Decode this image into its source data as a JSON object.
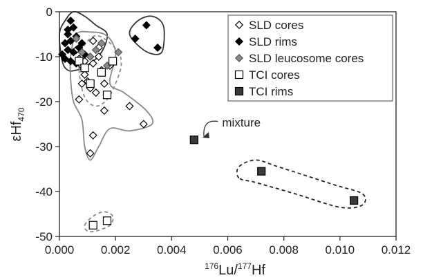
{
  "chart_data": {
    "type": "scatter",
    "title": "",
    "xlabel": {
      "sup": "176",
      "mid": "Lu/",
      "sup2": "177",
      "end": "Hf"
    },
    "ylabel": {
      "main": "εHf",
      "sub": "470"
    },
    "xlim": [
      0,
      0.012
    ],
    "ylim": [
      -50,
      0
    ],
    "xticks": [
      "0.000",
      "0.002",
      "0.004",
      "0.006",
      "0.008",
      "0.010",
      "0.012"
    ],
    "yticks": [
      "0",
      "-10",
      "-20",
      "-30",
      "-40",
      "-50"
    ],
    "legend_position": "top-right",
    "series": [
      {
        "name": "SLD cores",
        "marker": "diamond-open",
        "color": "#000000",
        "points": [
          [
            0.0006,
            -8.5
          ],
          [
            0.0008,
            -12
          ],
          [
            0.0009,
            -14
          ],
          [
            0.001,
            -15.5
          ],
          [
            0.0011,
            -17
          ],
          [
            0.0007,
            -19.5
          ],
          [
            0.0008,
            -16
          ],
          [
            0.0012,
            -11.5
          ],
          [
            0.0014,
            -10
          ],
          [
            0.0015,
            -13
          ],
          [
            0.0016,
            -16
          ],
          [
            0.0013,
            -18
          ],
          [
            0.0016,
            -22
          ],
          [
            0.0012,
            -27.5
          ],
          [
            0.0011,
            -31.5
          ],
          [
            0.0025,
            -21
          ],
          [
            0.003,
            -25
          ],
          [
            0.0009,
            -11
          ],
          [
            0.0012,
            -6.5
          ],
          [
            0.0014,
            -8
          ],
          [
            0.0018,
            -12
          ],
          [
            0.0007,
            -10.5
          ]
        ]
      },
      {
        "name": "SLD rims",
        "marker": "diamond-filled",
        "color": "#000000",
        "points": [
          [
            0.0004,
            -2
          ],
          [
            0.0005,
            -3.5
          ],
          [
            0.0003,
            -5
          ],
          [
            0.0004,
            -6.5
          ],
          [
            0.0006,
            -5.5
          ],
          [
            0.0002,
            -7
          ],
          [
            0.0003,
            -8.5
          ],
          [
            0.0005,
            -9
          ],
          [
            0.0007,
            -8
          ],
          [
            0.0009,
            -9.5
          ],
          [
            0.0002,
            -10.5
          ],
          [
            0.0004,
            -11
          ],
          [
            0.0001,
            -9.5
          ],
          [
            0.0006,
            -11.5
          ],
          [
            0.0008,
            -7
          ],
          [
            0.0003,
            -4
          ],
          [
            0.0027,
            -6
          ],
          [
            0.0031,
            -3
          ],
          [
            0.0035,
            -8
          ]
        ]
      },
      {
        "name": "SLD leucosome cores",
        "marker": "diamond-filled",
        "color": "#8a8a8a",
        "points": [
          [
            0.0006,
            -6
          ],
          [
            0.0008,
            -9
          ],
          [
            0.0011,
            -10
          ],
          [
            0.0013,
            -8.5
          ],
          [
            0.0015,
            -7
          ],
          [
            0.0021,
            -9
          ],
          [
            0.0017,
            -12
          ]
        ]
      },
      {
        "name": "TCI cores",
        "marker": "square-open",
        "color": "#000000",
        "points": [
          [
            0.0007,
            -11
          ],
          [
            0.0009,
            -12.5
          ],
          [
            0.0011,
            -16
          ],
          [
            0.0015,
            -13.5
          ],
          [
            0.0019,
            -11
          ],
          [
            0.0017,
            -18.5
          ],
          [
            0.0012,
            -47.5
          ],
          [
            0.0017,
            -46.5
          ]
        ]
      },
      {
        "name": "TCI rims",
        "marker": "square-filled",
        "color": "#3a3a3a",
        "points": [
          [
            0.0048,
            -28.5
          ],
          [
            0.0072,
            -35.5
          ],
          [
            0.0105,
            -42
          ]
        ]
      }
    ],
    "annotations": [
      {
        "text": "mixture",
        "x": 0.0058,
        "y": -25.5,
        "arrow_to": [
          0.0051,
          -28
        ]
      }
    ],
    "envelopes": [
      {
        "style": "solid-dark",
        "points": [
          [
            0.0001,
            -11
          ],
          [
            0.0,
            -5
          ],
          [
            0.0002,
            -2
          ],
          [
            0.0005,
            0
          ],
          [
            0.0009,
            -1
          ],
          [
            0.0013,
            -3
          ],
          [
            0.0017,
            -5
          ],
          [
            0.0015,
            -9
          ],
          [
            0.001,
            -12
          ],
          [
            0.0006,
            -13
          ],
          [
            0.0003,
            -13
          ]
        ]
      },
      {
        "style": "solid-dark",
        "points": [
          [
            0.0025,
            -5
          ],
          [
            0.0028,
            -2
          ],
          [
            0.0033,
            -1
          ],
          [
            0.0037,
            -3
          ],
          [
            0.0037,
            -8
          ],
          [
            0.0035,
            -9.5
          ],
          [
            0.003,
            -8.5
          ]
        ]
      },
      {
        "style": "solid-grey",
        "points": [
          [
            0.0004,
            -10
          ],
          [
            0.0006,
            -5
          ],
          [
            0.0011,
            -4.5
          ],
          [
            0.0016,
            -5
          ],
          [
            0.0019,
            -7
          ],
          [
            0.002,
            -10
          ],
          [
            0.0018,
            -16
          ],
          [
            0.0023,
            -18
          ],
          [
            0.0031,
            -22
          ],
          [
            0.0033,
            -25
          ],
          [
            0.0025,
            -26.5
          ],
          [
            0.0018,
            -26
          ],
          [
            0.0014,
            -30
          ],
          [
            0.0011,
            -33
          ],
          [
            0.0009,
            -30
          ],
          [
            0.0008,
            -24
          ],
          [
            0.0005,
            -20
          ],
          [
            0.0004,
            -15
          ]
        ]
      },
      {
        "style": "dashed-grey",
        "points": [
          [
            0.0007,
            -13
          ],
          [
            0.0008,
            -8.5
          ],
          [
            0.0012,
            -5.5
          ],
          [
            0.0016,
            -6
          ],
          [
            0.0021,
            -9
          ],
          [
            0.0022,
            -12
          ],
          [
            0.002,
            -16
          ],
          [
            0.0017,
            -19.5
          ],
          [
            0.0013,
            -21
          ],
          [
            0.0009,
            -19
          ]
        ]
      },
      {
        "style": "dashed-grey",
        "points": [
          [
            0.0009,
            -47.5
          ],
          [
            0.0012,
            -45.5
          ],
          [
            0.0016,
            -44.5
          ],
          [
            0.0019,
            -45.5
          ],
          [
            0.0018,
            -47.5
          ],
          [
            0.0013,
            -48.8
          ],
          [
            0.001,
            -48.8
          ]
        ]
      },
      {
        "style": "dashed-dark",
        "points": [
          [
            0.0064,
            -37
          ],
          [
            0.0064,
            -34.5
          ],
          [
            0.007,
            -33
          ],
          [
            0.0078,
            -34.5
          ],
          [
            0.0098,
            -38.5
          ],
          [
            0.0108,
            -40.5
          ],
          [
            0.0108,
            -43
          ],
          [
            0.01,
            -43.5
          ],
          [
            0.0084,
            -40.5
          ],
          [
            0.007,
            -38
          ]
        ]
      }
    ]
  }
}
